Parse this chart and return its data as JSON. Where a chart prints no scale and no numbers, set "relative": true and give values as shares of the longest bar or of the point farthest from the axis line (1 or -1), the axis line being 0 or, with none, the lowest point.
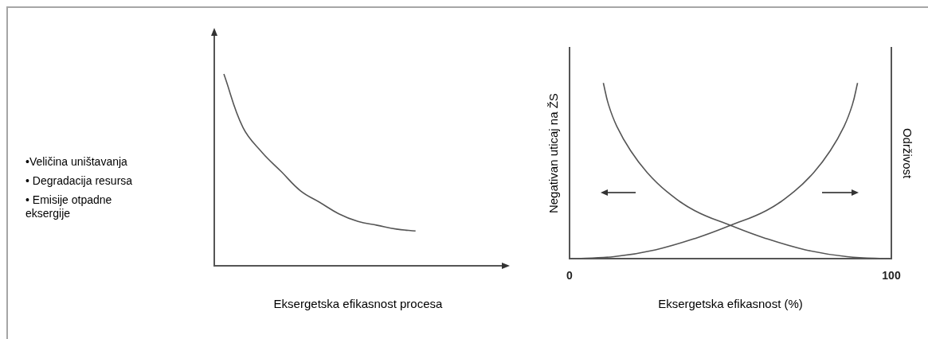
{
  "chart_data": [
    {
      "type": "line",
      "categories": [
        null,
        null,
        null,
        null,
        null,
        null,
        null,
        null,
        null,
        null,
        null,
        null,
        null,
        null,
        null
      ],
      "values": [
        1.0,
        0.72,
        0.59,
        0.49,
        0.39,
        0.33,
        0.27,
        0.23,
        0.21,
        0.19,
        0.18,
        null,
        null,
        null,
        null
      ],
      "color": "#555555",
      "relative": true,
      "marker": "none",
      "xlabel": "Eksergetska efikasnost procesa",
      "annotations": [
        "•Veličina uništavanja",
        "• Degradacija resursa",
        "• Emisije otpadne eksergije"
      ]
    },
    {
      "type": "line",
      "xlim": [
        0,
        100
      ],
      "xticks": [
        0,
        100
      ],
      "relative": true,
      "marker": "none",
      "xlabel": "Eksergetska efikasnost (%)",
      "ylabel": "Negativan uticaj na ŽS",
      "y2label": "Održivost",
      "series": [
        {
          "color": "#555555",
          "x": [
            10.5,
            12.1,
            14.7,
            19.0,
            24.1,
            30.2,
            38.8,
            50.0,
            60.3,
            73.3,
            86.2,
            100
          ],
          "values": [
            1.0,
            0.877,
            0.753,
            0.614,
            0.491,
            0.383,
            0.275,
            0.19,
            0.12,
            0.051,
            0.012,
            0
          ]
        },
        {
          "color": "#555555",
          "axis": "y2",
          "x": [
            0,
            13.8,
            26.7,
            39.7,
            50.0,
            61.2,
            69.8,
            75.9,
            81.0,
            85.3,
            87.9,
            89.5
          ],
          "values": [
            0,
            0.012,
            0.051,
            0.12,
            0.19,
            0.275,
            0.383,
            0.491,
            0.614,
            0.753,
            0.877,
            1.0
          ]
        }
      ]
    }
  ]
}
